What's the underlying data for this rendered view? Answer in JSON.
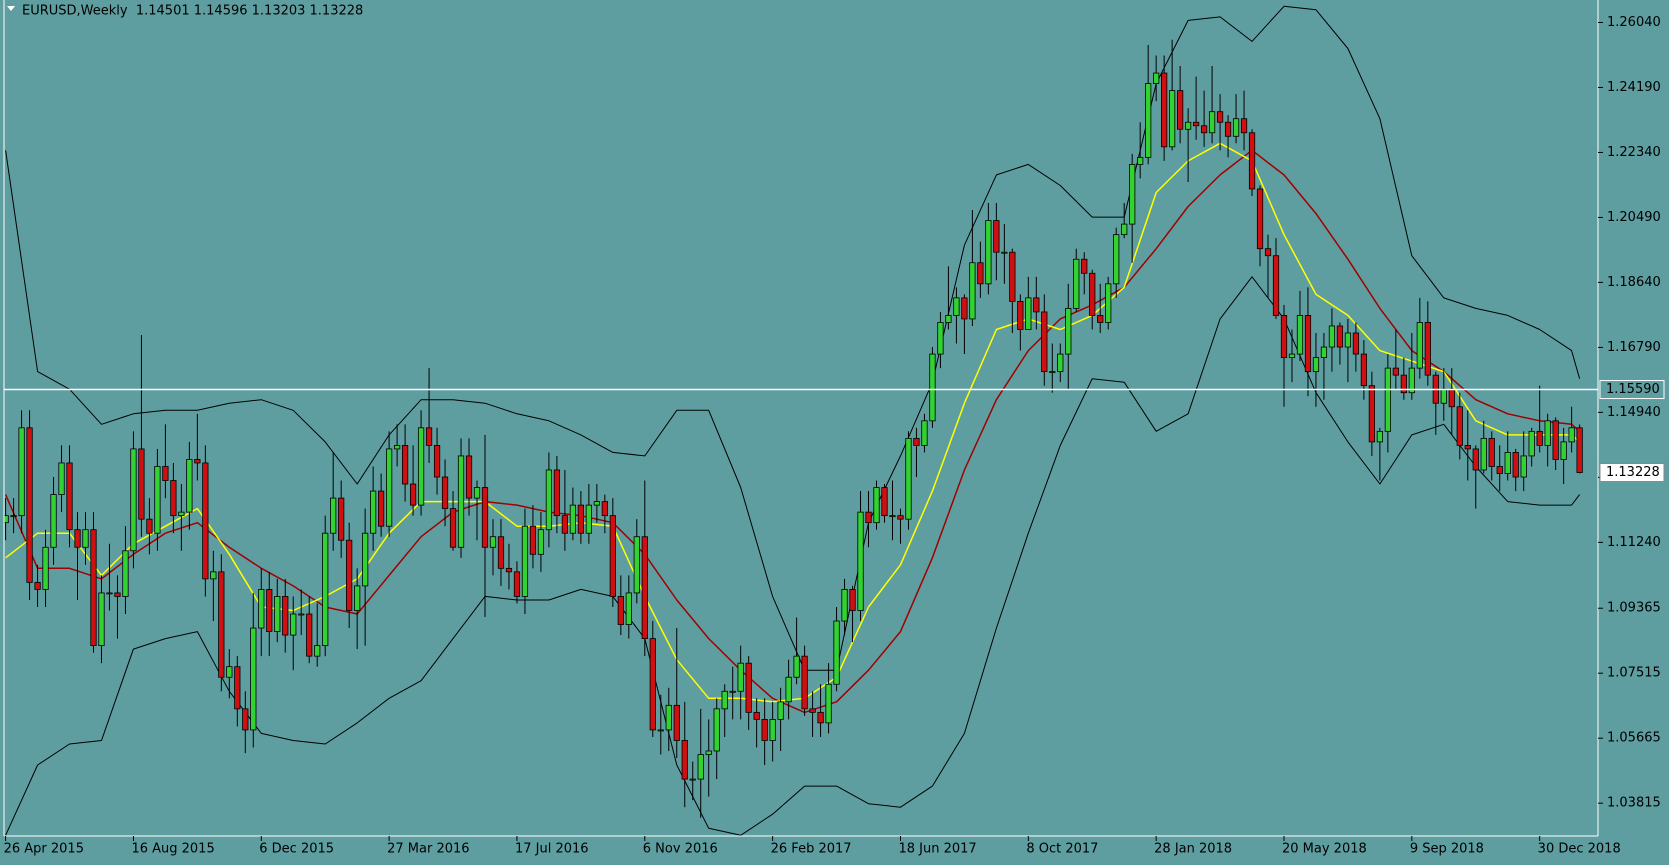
{
  "chart_data": {
    "type": "candlestick",
    "title": "EURUSD,Weekly  1.14501 1.14596 1.13203 1.13228",
    "background": "#5f9ea0",
    "up_color": "#32d232",
    "down_color": "#d01010",
    "grid": false,
    "xlim": [
      -0.2,
      199.3
    ],
    "ylim": [
      1.0288,
      1.2668
    ],
    "xticks": [
      {
        "value": 0,
        "label": "26 Apr 2015"
      },
      {
        "value": 16,
        "label": "16 Aug 2015"
      },
      {
        "value": 32,
        "label": "6 Dec 2015"
      },
      {
        "value": 48,
        "label": "27 Mar 2016"
      },
      {
        "value": 64,
        "label": "17 Jul 2016"
      },
      {
        "value": 80,
        "label": "6 Nov 2016"
      },
      {
        "value": 96,
        "label": "26 Feb 2017"
      },
      {
        "value": 112,
        "label": "18 Jun 2017"
      },
      {
        "value": 128,
        "label": "8 Oct 2017"
      },
      {
        "value": 144,
        "label": "28 Jan 2018"
      },
      {
        "value": 160,
        "label": "20 May 2018"
      },
      {
        "value": 176,
        "label": "9 Sep 2018"
      },
      {
        "value": 192,
        "label": "30 Dec 2018"
      }
    ],
    "yticks": [
      {
        "value": 1.2604,
        "label": "1.26040"
      },
      {
        "value": 1.2419,
        "label": "1.24190"
      },
      {
        "value": 1.2234,
        "label": "1.22340"
      },
      {
        "value": 1.2049,
        "label": "1.20490"
      },
      {
        "value": 1.1864,
        "label": "1.18640"
      },
      {
        "value": 1.1679,
        "label": "1.16790"
      },
      {
        "value": 1.1494,
        "label": "1.14940"
      },
      {
        "value": 1.1309,
        "label": "1.13090"
      },
      {
        "value": 1.1124,
        "label": "1.11240"
      },
      {
        "value": 1.09365,
        "label": "1.09365"
      },
      {
        "value": 1.07515,
        "label": "1.07515"
      },
      {
        "value": 1.05665,
        "label": "1.05665"
      },
      {
        "value": 1.03815,
        "label": "1.03815"
      }
    ],
    "hline": {
      "value": 1.1559,
      "label": "1.15590",
      "color": "#ffffff"
    },
    "open": [
      1.118,
      1.12,
      1.12,
      1.145,
      1.101,
      1.099,
      1.111,
      1.126,
      1.135,
      1.116,
      1.111,
      1.116,
      1.083,
      1.098,
      1.098,
      1.097,
      1.11,
      1.139,
      1.119,
      1.115,
      1.134,
      1.13,
      1.12,
      1.121,
      1.136,
      1.135,
      1.102,
      1.104,
      1.074,
      1.077,
      1.065,
      1.059,
      1.088,
      1.099,
      1.087,
      1.097,
      1.086,
      1.092,
      1.092,
      1.08,
      1.083,
      1.115,
      1.125,
      1.113,
      1.093,
      1.1,
      1.115,
      1.127,
      1.117,
      1.139,
      1.14,
      1.129,
      1.123,
      1.145,
      1.14,
      1.131,
      1.122,
      1.111,
      1.137,
      1.125,
      1.128,
      1.111,
      1.114,
      1.105,
      1.104,
      1.097,
      1.117,
      1.109,
      1.116,
      1.133,
      1.12,
      1.115,
      1.123,
      1.115,
      1.123,
      1.124,
      1.12,
      1.097,
      1.089,
      1.098,
      1.114,
      1.085,
      1.059,
      1.059,
      1.066,
      1.056,
      1.045,
      1.045,
      1.052,
      1.053,
      1.065,
      1.07,
      1.07,
      1.078,
      1.064,
      1.062,
      1.056,
      1.062,
      1.067,
      1.074,
      1.08,
      1.065,
      1.064,
      1.061,
      1.072,
      1.09,
      1.099,
      1.093,
      1.121,
      1.118,
      1.128,
      1.12,
      1.12,
      1.119,
      1.142,
      1.14,
      1.147,
      1.166,
      1.175,
      1.177,
      1.182,
      1.176,
      1.192,
      1.186,
      1.204,
      1.195,
      1.195,
      1.181,
      1.173,
      1.182,
      1.178,
      1.161,
      1.161,
      1.166,
      1.179,
      1.193,
      1.189,
      1.177,
      1.175,
      1.186,
      1.2,
      1.203,
      1.22,
      1.222,
      1.243,
      1.246,
      1.225,
      1.241,
      1.23,
      1.232,
      1.231,
      1.229,
      1.235,
      1.232,
      1.228,
      1.233,
      1.229,
      1.213,
      1.196,
      1.194,
      1.177,
      1.165,
      1.166,
      1.177,
      1.161,
      1.165,
      1.168,
      1.174,
      1.168,
      1.172,
      1.166,
      1.157,
      1.141,
      1.144,
      1.162,
      1.16,
      1.155,
      1.162,
      1.175,
      1.16,
      1.152,
      1.156,
      1.151,
      1.14,
      1.139,
      1.133,
      1.142,
      1.134,
      1.132,
      1.138,
      1.131,
      1.137,
      1.144,
      1.14,
      1.147,
      1.136,
      1.141,
      1.14501
    ],
    "high": [
      1.125,
      1.125,
      1.15,
      1.15,
      1.106,
      1.116,
      1.131,
      1.14,
      1.14,
      1.121,
      1.121,
      1.121,
      1.103,
      1.112,
      1.103,
      1.117,
      1.144,
      1.1714,
      1.125,
      1.139,
      1.146,
      1.135,
      1.129,
      1.141,
      1.149,
      1.14,
      1.11,
      1.109,
      1.082,
      1.08,
      1.07,
      1.098,
      1.105,
      1.104,
      1.102,
      1.102,
      1.097,
      1.099,
      1.097,
      1.095,
      1.12,
      1.138,
      1.13,
      1.118,
      1.105,
      1.122,
      1.134,
      1.132,
      1.144,
      1.146,
      1.146,
      1.14,
      1.15,
      1.162,
      1.145,
      1.136,
      1.127,
      1.142,
      1.142,
      1.13,
      1.143,
      1.119,
      1.119,
      1.112,
      1.107,
      1.122,
      1.123,
      1.121,
      1.138,
      1.137,
      1.133,
      1.128,
      1.127,
      1.129,
      1.129,
      1.126,
      1.125,
      1.103,
      1.103,
      1.119,
      1.13,
      1.09,
      1.069,
      1.071,
      1.088,
      1.067,
      1.05,
      1.065,
      1.062,
      1.068,
      1.072,
      1.077,
      1.083,
      1.08,
      1.068,
      1.068,
      1.067,
      1.071,
      1.079,
      1.091,
      1.083,
      1.07,
      1.072,
      1.078,
      1.094,
      1.102,
      1.1,
      1.127,
      1.127,
      1.13,
      1.129,
      1.13,
      1.122,
      1.144,
      1.145,
      1.149,
      1.168,
      1.178,
      1.191,
      1.185,
      1.183,
      1.207,
      1.198,
      1.209,
      1.209,
      1.203,
      1.196,
      1.183,
      1.188,
      1.188,
      1.183,
      1.169,
      1.169,
      1.186,
      1.196,
      1.195,
      1.19,
      1.186,
      1.188,
      1.202,
      1.209,
      1.223,
      1.232,
      1.254,
      1.251,
      1.251,
      1.2555,
      1.248,
      1.236,
      1.245,
      1.241,
      1.248,
      1.24,
      1.234,
      1.24,
      1.241,
      1.23,
      1.214,
      1.2,
      1.199,
      1.18,
      1.173,
      1.184,
      1.185,
      1.172,
      1.172,
      1.179,
      1.175,
      1.176,
      1.175,
      1.17,
      1.161,
      1.145,
      1.166,
      1.173,
      1.165,
      1.172,
      1.182,
      1.181,
      1.161,
      1.162,
      1.162,
      1.155,
      1.15,
      1.14,
      1.147,
      1.144,
      1.14,
      1.144,
      1.139,
      1.144,
      1.145,
      1.157,
      1.149,
      1.148,
      1.145,
      1.151,
      1.14596
    ],
    "low": [
      1.113,
      1.115,
      1.115,
      1.096,
      1.094,
      1.094,
      1.106,
      1.121,
      1.111,
      1.096,
      1.106,
      1.081,
      1.078,
      1.093,
      1.085,
      1.092,
      1.105,
      1.114,
      1.109,
      1.11,
      1.125,
      1.115,
      1.11,
      1.116,
      1.13,
      1.097,
      1.09,
      1.07,
      1.068,
      1.06,
      1.0524,
      1.054,
      1.08,
      1.08,
      1.084,
      1.081,
      1.076,
      1.086,
      1.078,
      1.077,
      1.08,
      1.11,
      1.108,
      1.088,
      1.082,
      1.083,
      1.11,
      1.114,
      1.114,
      1.134,
      1.124,
      1.12,
      1.12,
      1.135,
      1.126,
      1.117,
      1.11,
      1.108,
      1.12,
      1.113,
      1.0912,
      1.103,
      1.1,
      1.099,
      1.095,
      1.092,
      1.105,
      1.104,
      1.111,
      1.115,
      1.11,
      1.113,
      1.112,
      1.112,
      1.118,
      1.115,
      1.094,
      1.086,
      1.085,
      1.095,
      1.08,
      1.057,
      1.052,
      1.053,
      1.051,
      1.037,
      1.039,
      1.034,
      1.04,
      1.045,
      1.057,
      1.062,
      1.062,
      1.059,
      1.054,
      1.049,
      1.05,
      1.053,
      1.062,
      1.072,
      1.063,
      1.057,
      1.057,
      1.058,
      1.07,
      1.086,
      1.084,
      1.09,
      1.111,
      1.116,
      1.118,
      1.113,
      1.112,
      1.116,
      1.131,
      1.138,
      1.145,
      1.162,
      1.173,
      1.169,
      1.166,
      1.174,
      1.182,
      1.183,
      1.187,
      1.186,
      1.172,
      1.167,
      1.173,
      1.173,
      1.157,
      1.155,
      1.158,
      1.156,
      1.178,
      1.183,
      1.173,
      1.172,
      1.173,
      1.182,
      1.199,
      1.192,
      1.216,
      1.22,
      1.238,
      1.221,
      1.224,
      1.226,
      1.215,
      1.227,
      1.225,
      1.226,
      1.224,
      1.222,
      1.226,
      1.224,
      1.211,
      1.191,
      1.182,
      1.176,
      1.151,
      1.158,
      1.164,
      1.154,
      1.151,
      1.153,
      1.161,
      1.163,
      1.158,
      1.161,
      1.153,
      1.137,
      1.13,
      1.138,
      1.156,
      1.153,
      1.153,
      1.159,
      1.157,
      1.143,
      1.147,
      1.143,
      1.136,
      1.13,
      1.122,
      1.132,
      1.13,
      1.127,
      1.13,
      1.127,
      1.127,
      1.134,
      1.138,
      1.134,
      1.133,
      1.129,
      1.138,
      1.13203
    ],
    "close": [
      1.12,
      1.12,
      1.145,
      1.101,
      1.099,
      1.111,
      1.126,
      1.135,
      1.116,
      1.111,
      1.116,
      1.083,
      1.098,
      1.098,
      1.097,
      1.11,
      1.139,
      1.119,
      1.115,
      1.134,
      1.13,
      1.12,
      1.121,
      1.136,
      1.135,
      1.102,
      1.104,
      1.074,
      1.077,
      1.065,
      1.059,
      1.088,
      1.099,
      1.087,
      1.097,
      1.086,
      1.092,
      1.092,
      1.08,
      1.083,
      1.115,
      1.125,
      1.113,
      1.093,
      1.1,
      1.115,
      1.127,
      1.117,
      1.139,
      1.14,
      1.129,
      1.123,
      1.145,
      1.14,
      1.131,
      1.122,
      1.111,
      1.137,
      1.125,
      1.128,
      1.111,
      1.114,
      1.105,
      1.104,
      1.097,
      1.117,
      1.109,
      1.116,
      1.133,
      1.12,
      1.115,
      1.123,
      1.115,
      1.123,
      1.124,
      1.12,
      1.097,
      1.089,
      1.098,
      1.114,
      1.085,
      1.059,
      1.059,
      1.066,
      1.056,
      1.045,
      1.045,
      1.052,
      1.053,
      1.065,
      1.07,
      1.07,
      1.078,
      1.064,
      1.062,
      1.056,
      1.062,
      1.067,
      1.074,
      1.08,
      1.065,
      1.064,
      1.061,
      1.072,
      1.09,
      1.099,
      1.093,
      1.121,
      1.118,
      1.128,
      1.12,
      1.12,
      1.119,
      1.142,
      1.14,
      1.147,
      1.166,
      1.175,
      1.177,
      1.182,
      1.176,
      1.192,
      1.186,
      1.204,
      1.195,
      1.195,
      1.181,
      1.173,
      1.182,
      1.178,
      1.161,
      1.161,
      1.166,
      1.179,
      1.193,
      1.189,
      1.177,
      1.175,
      1.186,
      1.2,
      1.203,
      1.22,
      1.222,
      1.243,
      1.246,
      1.225,
      1.241,
      1.23,
      1.232,
      1.231,
      1.229,
      1.235,
      1.232,
      1.228,
      1.233,
      1.229,
      1.213,
      1.196,
      1.194,
      1.177,
      1.165,
      1.166,
      1.177,
      1.161,
      1.165,
      1.168,
      1.174,
      1.168,
      1.172,
      1.166,
      1.157,
      1.141,
      1.144,
      1.162,
      1.16,
      1.155,
      1.162,
      1.175,
      1.16,
      1.152,
      1.156,
      1.151,
      1.14,
      1.139,
      1.133,
      1.142,
      1.134,
      1.132,
      1.138,
      1.131,
      1.137,
      1.144,
      1.14,
      1.147,
      1.136,
      1.141,
      1.14501,
      1.13228
    ],
    "overlay_x": [
      0,
      4,
      8,
      12,
      16,
      20,
      24,
      28,
      32,
      36,
      40,
      44,
      48,
      52,
      56,
      60,
      64,
      68,
      72,
      76,
      80,
      84,
      88,
      92,
      96,
      100,
      104,
      108,
      112,
      116,
      120,
      124,
      128,
      132,
      136,
      140,
      144,
      148,
      152,
      156,
      160,
      164,
      168,
      172,
      176,
      180,
      184,
      188,
      192,
      196,
      197
    ],
    "overlays": [
      {
        "color": "#000000",
        "values": [
          1.224,
          1.161,
          1.156,
          1.146,
          1.149,
          1.15,
          1.15,
          1.152,
          1.153,
          1.15,
          1.141,
          1.129,
          1.143,
          1.153,
          1.153,
          1.152,
          1.149,
          1.147,
          1.143,
          1.138,
          1.137,
          1.15,
          1.15,
          1.128,
          1.097,
          1.076,
          1.076,
          1.118,
          1.137,
          1.158,
          1.197,
          1.217,
          1.22,
          1.214,
          1.205,
          1.205,
          1.243,
          1.261,
          1.262,
          1.255,
          1.265,
          1.264,
          1.253,
          1.233,
          1.194,
          1.182,
          1.179,
          1.177,
          1.173,
          1.167,
          1.159
        ]
      },
      {
        "color": "#000000",
        "values": [
          1.029,
          1.049,
          1.055,
          1.056,
          1.082,
          1.085,
          1.087,
          1.07,
          1.058,
          1.056,
          1.055,
          1.061,
          1.068,
          1.073,
          1.085,
          1.097,
          1.096,
          1.096,
          1.099,
          1.097,
          1.085,
          1.049,
          1.031,
          1.029,
          1.035,
          1.043,
          1.043,
          1.038,
          1.037,
          1.043,
          1.058,
          1.088,
          1.115,
          1.14,
          1.159,
          1.158,
          1.144,
          1.149,
          1.176,
          1.188,
          1.176,
          1.155,
          1.141,
          1.129,
          1.143,
          1.146,
          1.134,
          1.124,
          1.123,
          1.123,
          1.126
        ]
      },
      {
        "color": "#a00000",
        "values": [
          1.126,
          1.105,
          1.105,
          1.102,
          1.109,
          1.115,
          1.118,
          1.111,
          1.105,
          1.1,
          1.094,
          1.092,
          1.103,
          1.114,
          1.121,
          1.124,
          1.123,
          1.121,
          1.12,
          1.118,
          1.109,
          1.096,
          1.085,
          1.076,
          1.068,
          1.064,
          1.067,
          1.076,
          1.087,
          1.108,
          1.133,
          1.153,
          1.167,
          1.176,
          1.18,
          1.185,
          1.196,
          1.208,
          1.217,
          1.224,
          1.217,
          1.206,
          1.193,
          1.179,
          1.167,
          1.161,
          1.153,
          1.149,
          1.147,
          1.146,
          1.144
        ]
      },
      {
        "color": "#ffff00",
        "values": [
          1.108,
          1.115,
          1.115,
          1.103,
          1.112,
          1.117,
          1.122,
          1.109,
          1.094,
          1.093,
          1.097,
          1.102,
          1.115,
          1.124,
          1.124,
          1.124,
          1.117,
          1.117,
          1.118,
          1.117,
          1.097,
          1.079,
          1.068,
          1.068,
          1.067,
          1.068,
          1.074,
          1.094,
          1.106,
          1.127,
          1.152,
          1.173,
          1.176,
          1.173,
          1.177,
          1.185,
          1.212,
          1.221,
          1.226,
          1.221,
          1.2,
          1.183,
          1.177,
          1.167,
          1.164,
          1.161,
          1.147,
          1.143,
          1.143,
          1.143,
          1.141
        ]
      }
    ]
  }
}
